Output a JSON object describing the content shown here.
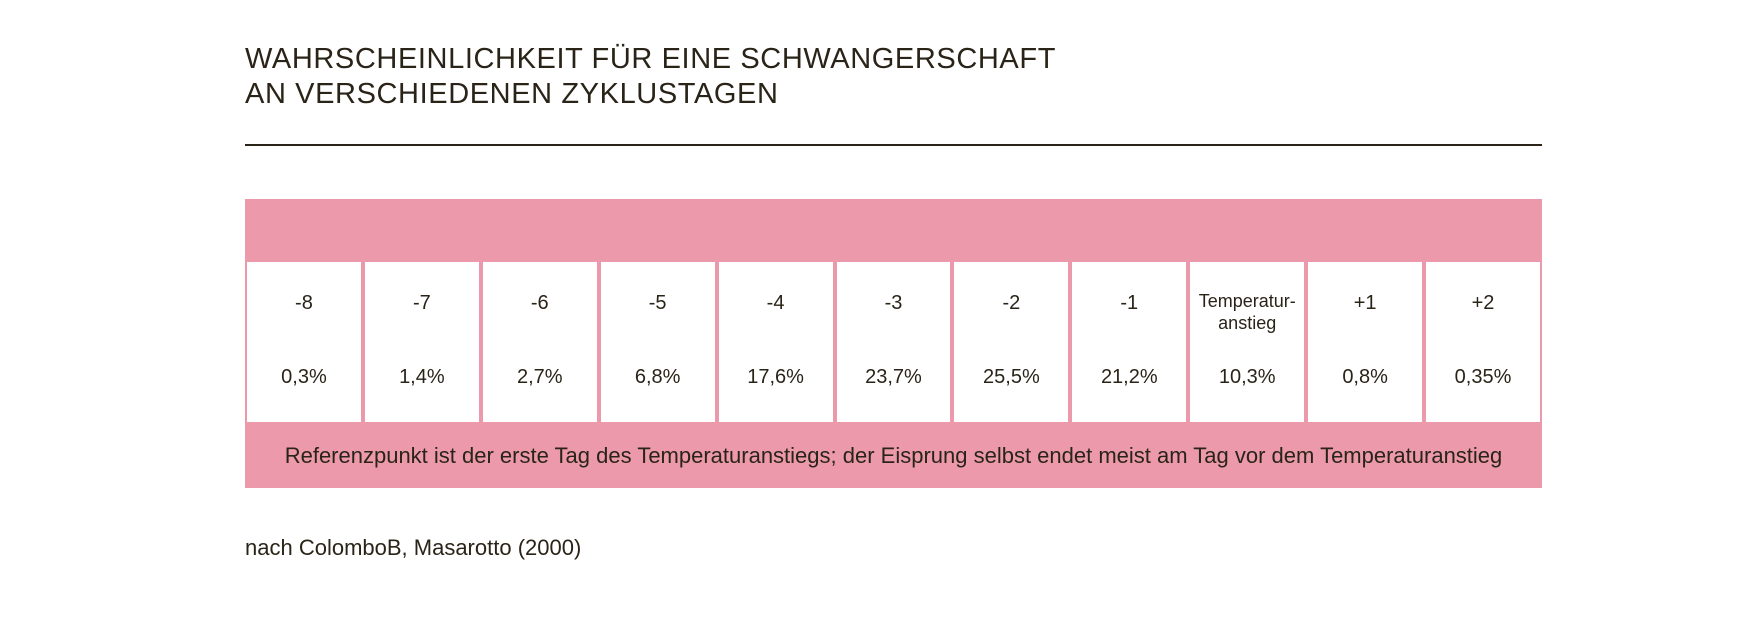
{
  "title": {
    "line1": "WAHRSCHEINLICHKEIT FÜR EINE SCHWANGERSCHAFT",
    "line2": "AN VERSCHIEDENEN ZYKLUSTAGEN"
  },
  "chart_data": {
    "type": "table",
    "title": "WAHRSCHEINLICHKEIT FÜR EINE SCHWANGERSCHAFT AN VERSCHIEDENEN ZYKLUSTAGEN",
    "categories": [
      "-8",
      "-7",
      "-6",
      "-5",
      "-4",
      "-3",
      "-2",
      "-1",
      "Temperatur-\nanstieg",
      "+1",
      "+2"
    ],
    "labels": [
      "0,3%",
      "1,4%",
      "2,7%",
      "6,8%",
      "17,6%",
      "23,7%",
      "25,5%",
      "21,2%",
      "10,3%",
      "0,8%",
      "0,35%"
    ],
    "values": [
      0.3,
      1.4,
      2.7,
      6.8,
      17.6,
      23.7,
      25.5,
      21.2,
      10.3,
      0.8,
      0.35
    ],
    "unit": "%",
    "footnote": "Referenzpunkt ist der erste Tag des Temperaturanstiegs; der Eisprung selbst endet meist am Tag vor dem Temperaturanstieg",
    "source": "nach ColomboB, Masarotto (2000)"
  },
  "colors": {
    "accent": "#ec9aab",
    "text": "#2a2418",
    "background": "#ffffff"
  }
}
